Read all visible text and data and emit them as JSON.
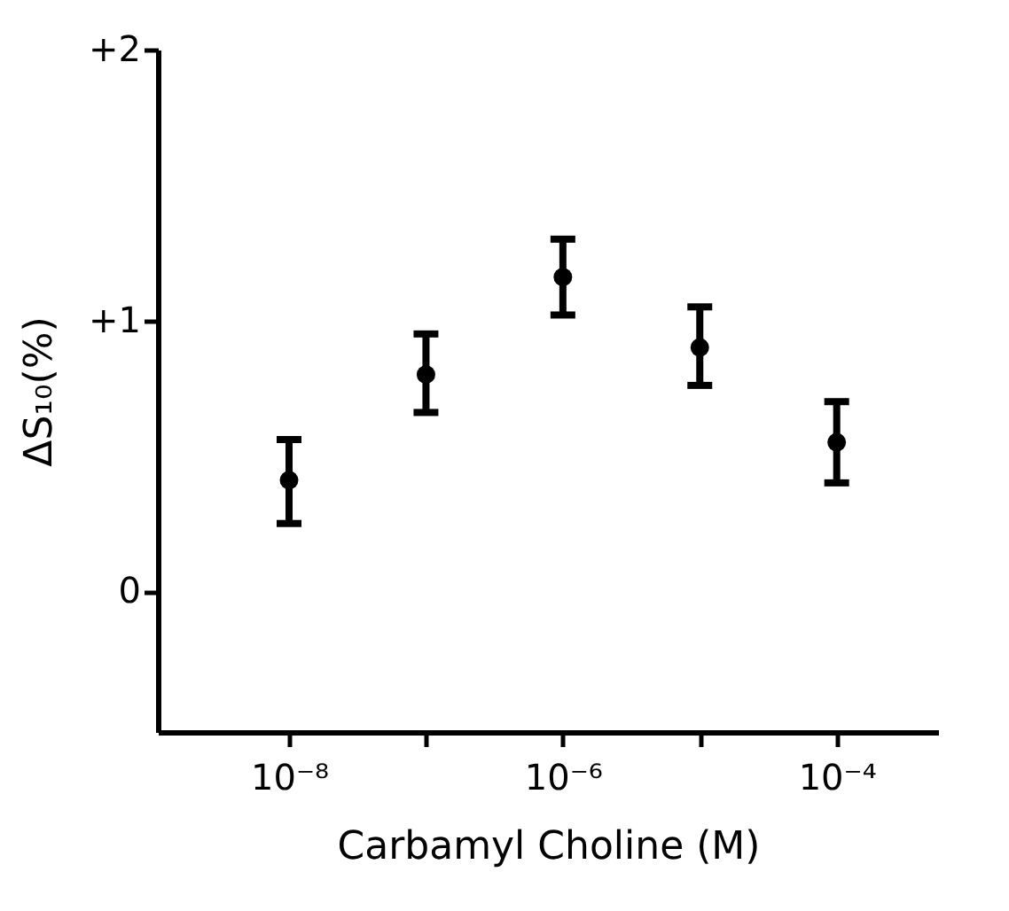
{
  "chart_data": {
    "type": "scatter",
    "xlabel": "Carbamyl Choline (M)",
    "ylabel": "ΔS₁₀(%)",
    "x": [
      1e-08,
      1e-07,
      1e-06,
      1e-05,
      0.0001
    ],
    "series": [
      {
        "color": "#000000",
        "values": [
          0.41,
          0.8,
          1.16,
          0.9,
          0.55
        ],
        "errors": [
          [
            0.25,
            0.56
          ],
          [
            0.66,
            0.95
          ],
          [
            1.02,
            1.3
          ],
          [
            0.76,
            1.05
          ],
          [
            0.4,
            0.7
          ]
        ]
      }
    ],
    "log": "x",
    "xlim": [
      1.1e-09,
      0.00055
    ],
    "ylim": [
      -0.52,
      2.0
    ],
    "xticks": [
      {
        "value": 1e-08,
        "label": "10⁻⁸"
      },
      {
        "value": 1e-07,
        "label": null
      },
      {
        "value": 1e-06,
        "label": "10⁻⁶"
      },
      {
        "value": 1e-05,
        "label": null
      },
      {
        "value": 0.0001,
        "label": "10⁻⁴"
      }
    ],
    "yticks": [
      {
        "value": 0,
        "label": "0"
      },
      {
        "value": 1,
        "label": "+1"
      },
      {
        "value": 2,
        "label": "+2"
      }
    ],
    "grid": false,
    "marker": "circle"
  }
}
